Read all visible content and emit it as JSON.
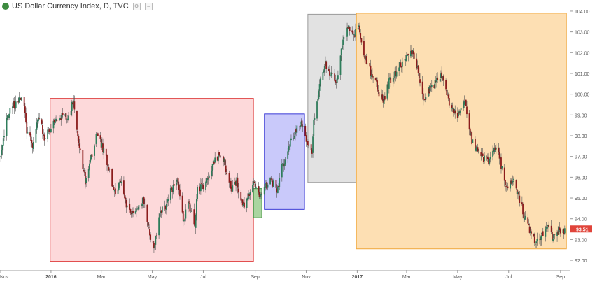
{
  "header": {
    "title": "US Dollar Currency Index, D, TVC",
    "settings_icon": "gear-icon",
    "collapse_icon": "minimize-icon",
    "logo_color": "#3d8b40"
  },
  "price_badge": {
    "value": "93.51",
    "color": "#e0443a"
  },
  "colors": {
    "up_candle": "#2e7d5b",
    "down_candle": "#8b1c1c",
    "wick": "#555555",
    "box_red_fill": "#fdd9da",
    "box_red_border": "#e04848",
    "box_green_fill": "#a9d5a0",
    "box_green_border": "#3a8a3a",
    "box_blue_fill": "#c9c9fa",
    "box_blue_border": "#3a3ad6",
    "box_gray_fill": "#e2e2e2",
    "box_gray_border": "#9a9a9a",
    "box_orange_fill": "#fddfb3",
    "box_orange_border": "#f0a63a"
  },
  "chart_data": {
    "type": "candlestick",
    "title": "US Dollar Currency Index, D, TVC",
    "xlabel": "",
    "ylabel": "",
    "ylim": [
      91.8,
      104.2
    ],
    "y_ticks": [
      92.0,
      93.0,
      94.0,
      95.0,
      96.0,
      97.0,
      98.0,
      99.0,
      100.0,
      101.0,
      102.0,
      103.0,
      104.0
    ],
    "y_tick_labels": [
      "92.00",
      "93.00",
      "94.00",
      "95.00",
      "96.00",
      "97.00",
      "98.00",
      "99.00",
      "100.00",
      "101.00",
      "102.00",
      "103.00",
      "104.00"
    ],
    "x_tick_labels": [
      "Nov",
      "2016",
      "Mar",
      "May",
      "Jul",
      "Sep",
      "Nov",
      "2017",
      "Mar",
      "May",
      "Jul",
      "Sep"
    ],
    "x_tick_dates": [
      "2015-11-01",
      "2016-01-01",
      "2016-03-01",
      "2016-05-01",
      "2016-07-01",
      "2016-09-01",
      "2016-11-01",
      "2017-01-01",
      "2017-03-01",
      "2017-05-01",
      "2017-07-01",
      "2017-09-01"
    ],
    "x_range": [
      "2015-11-01",
      "2017-09-12"
    ],
    "last_price": 93.51,
    "close_path": [
      [
        "2015-11-01",
        97.0
      ],
      [
        "2015-11-08",
        98.6
      ],
      [
        "2015-11-15",
        99.4
      ],
      [
        "2015-11-22",
        99.6
      ],
      [
        "2015-11-29",
        100.0
      ],
      [
        "2015-12-03",
        98.2
      ],
      [
        "2015-12-10",
        97.6
      ],
      [
        "2015-12-17",
        98.9
      ],
      [
        "2015-12-24",
        98.0
      ],
      [
        "2016-01-01",
        98.5
      ],
      [
        "2016-01-10",
        99.0
      ],
      [
        "2016-01-20",
        98.8
      ],
      [
        "2016-01-28",
        99.7
      ],
      [
        "2016-02-05",
        97.2
      ],
      [
        "2016-02-11",
        95.8
      ],
      [
        "2016-02-18",
        96.9
      ],
      [
        "2016-02-25",
        98.1
      ],
      [
        "2016-03-03",
        97.4
      ],
      [
        "2016-03-10",
        96.5
      ],
      [
        "2016-03-17",
        95.2
      ],
      [
        "2016-03-24",
        95.9
      ],
      [
        "2016-03-31",
        94.6
      ],
      [
        "2016-04-07",
        94.2
      ],
      [
        "2016-04-14",
        94.7
      ],
      [
        "2016-04-21",
        94.9
      ],
      [
        "2016-04-28",
        93.1
      ],
      [
        "2016-05-03",
        92.6
      ],
      [
        "2016-05-10",
        94.2
      ],
      [
        "2016-05-17",
        94.6
      ],
      [
        "2016-05-24",
        95.4
      ],
      [
        "2016-05-31",
        95.7
      ],
      [
        "2016-06-07",
        93.9
      ],
      [
        "2016-06-14",
        94.7
      ],
      [
        "2016-06-21",
        93.6
      ],
      [
        "2016-06-24",
        95.4
      ],
      [
        "2016-07-01",
        95.6
      ],
      [
        "2016-07-12",
        96.5
      ],
      [
        "2016-07-20",
        97.2
      ],
      [
        "2016-07-27",
        96.6
      ],
      [
        "2016-08-03",
        95.4
      ],
      [
        "2016-08-10",
        95.8
      ],
      [
        "2016-08-17",
        94.6
      ],
      [
        "2016-08-24",
        95.1
      ],
      [
        "2016-08-31",
        95.8
      ],
      [
        "2016-09-05",
        95.2
      ],
      [
        "2016-09-12",
        95.5
      ],
      [
        "2016-09-20",
        95.8
      ],
      [
        "2016-09-27",
        95.4
      ],
      [
        "2016-10-04",
        96.6
      ],
      [
        "2016-10-11",
        97.5
      ],
      [
        "2016-10-18",
        98.0
      ],
      [
        "2016-10-25",
        98.7
      ],
      [
        "2016-11-01",
        97.8
      ],
      [
        "2016-11-08",
        97.2
      ],
      [
        "2016-11-10",
        98.6
      ],
      [
        "2016-11-17",
        100.5
      ],
      [
        "2016-11-24",
        101.4
      ],
      [
        "2016-12-01",
        101.0
      ],
      [
        "2016-12-08",
        100.7
      ],
      [
        "2016-12-15",
        102.8
      ],
      [
        "2016-12-22",
        103.1
      ],
      [
        "2016-12-29",
        102.9
      ],
      [
        "2017-01-03",
        103.3
      ],
      [
        "2017-01-10",
        101.8
      ],
      [
        "2017-01-17",
        101.0
      ],
      [
        "2017-01-24",
        100.4
      ],
      [
        "2017-02-01",
        99.6
      ],
      [
        "2017-02-08",
        100.6
      ],
      [
        "2017-02-15",
        101.0
      ],
      [
        "2017-02-22",
        101.4
      ],
      [
        "2017-03-01",
        101.8
      ],
      [
        "2017-03-08",
        102.0
      ],
      [
        "2017-03-15",
        101.0
      ],
      [
        "2017-03-22",
        99.8
      ],
      [
        "2017-03-29",
        100.3
      ],
      [
        "2017-04-05",
        100.6
      ],
      [
        "2017-04-12",
        100.9
      ],
      [
        "2017-04-19",
        99.8
      ],
      [
        "2017-04-26",
        99.1
      ],
      [
        "2017-05-03",
        99.0
      ],
      [
        "2017-05-10",
        99.5
      ],
      [
        "2017-05-17",
        97.9
      ],
      [
        "2017-05-24",
        97.3
      ],
      [
        "2017-05-31",
        96.9
      ],
      [
        "2017-06-07",
        96.8
      ],
      [
        "2017-06-14",
        97.5
      ],
      [
        "2017-06-21",
        96.8
      ],
      [
        "2017-06-28",
        95.6
      ],
      [
        "2017-07-05",
        95.9
      ],
      [
        "2017-07-12",
        95.2
      ],
      [
        "2017-07-19",
        94.2
      ],
      [
        "2017-07-26",
        93.5
      ],
      [
        "2017-08-02",
        92.8
      ],
      [
        "2017-08-09",
        93.2
      ],
      [
        "2017-08-16",
        93.8
      ],
      [
        "2017-08-23",
        93.0
      ],
      [
        "2017-08-30",
        93.4
      ],
      [
        "2017-09-06",
        93.5
      ]
    ],
    "highlight_boxes": [
      {
        "label": "",
        "from": "2015-12-31",
        "to": "2016-08-30",
        "low": 91.95,
        "high": 99.8,
        "color": "red"
      },
      {
        "label": "",
        "from": "2016-08-30",
        "to": "2016-09-09",
        "low": 94.05,
        "high": 95.45,
        "color": "green"
      },
      {
        "label": "",
        "from": "2016-09-12",
        "to": "2016-10-30",
        "low": 94.45,
        "high": 99.05,
        "color": "blue"
      },
      {
        "label": "",
        "from": "2016-11-03",
        "to": "2016-12-31",
        "low": 95.75,
        "high": 103.85,
        "color": "gray"
      },
      {
        "label": "",
        "from": "2016-12-31",
        "to": "2017-09-08",
        "low": 92.55,
        "high": 103.9,
        "color": "orange"
      }
    ]
  }
}
